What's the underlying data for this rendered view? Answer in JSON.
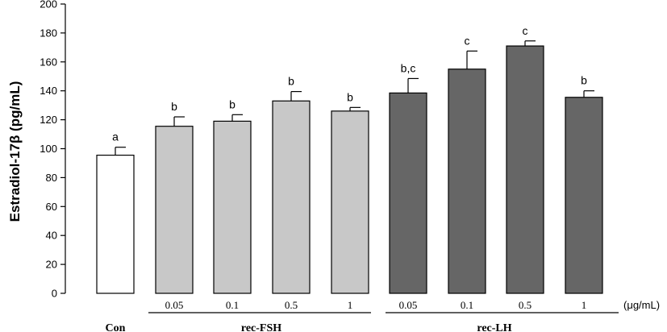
{
  "chart_data": {
    "type": "bar",
    "ylabel": "Estradiol-17β (pg/mL)",
    "ylim": [
      0,
      200
    ],
    "yticks": [
      0,
      20,
      40,
      60,
      80,
      100,
      120,
      140,
      160,
      180,
      200
    ],
    "unit": "(μg/mL)",
    "groups": [
      {
        "label": "Con",
        "doses": []
      },
      {
        "label": "rec-FSH",
        "doses": [
          "0.05",
          "0.1",
          "0.5",
          "1"
        ]
      },
      {
        "label": "rec-LH",
        "doses": [
          "0.05",
          "0.1",
          "0.5",
          "1"
        ]
      }
    ],
    "bars": [
      {
        "group": "Con",
        "dose": "",
        "value": 95.5,
        "error": 5.5,
        "sig": "a",
        "color": "#ffffff"
      },
      {
        "group": "rec-FSH",
        "dose": "0.05",
        "value": 115.5,
        "error": 6.5,
        "sig": "b",
        "color": "#c8c8c8"
      },
      {
        "group": "rec-FSH",
        "dose": "0.1",
        "value": 119,
        "error": 4.5,
        "sig": "b",
        "color": "#c8c8c8"
      },
      {
        "group": "rec-FSH",
        "dose": "0.5",
        "value": 133,
        "error": 6.5,
        "sig": "b",
        "color": "#c8c8c8"
      },
      {
        "group": "rec-FSH",
        "dose": "1",
        "value": 126,
        "error": 2.5,
        "sig": "b",
        "color": "#c8c8c8"
      },
      {
        "group": "rec-LH",
        "dose": "0.05",
        "value": 138.5,
        "error": 10,
        "sig": "b,c",
        "color": "#666666"
      },
      {
        "group": "rec-LH",
        "dose": "0.1",
        "value": 155,
        "error": 12.5,
        "sig": "c",
        "color": "#666666"
      },
      {
        "group": "rec-LH",
        "dose": "0.5",
        "value": 171,
        "error": 3.5,
        "sig": "c",
        "color": "#666666"
      },
      {
        "group": "rec-LH",
        "dose": "1",
        "value": 135.5,
        "error": 4.5,
        "sig": "b",
        "color": "#666666"
      }
    ]
  }
}
